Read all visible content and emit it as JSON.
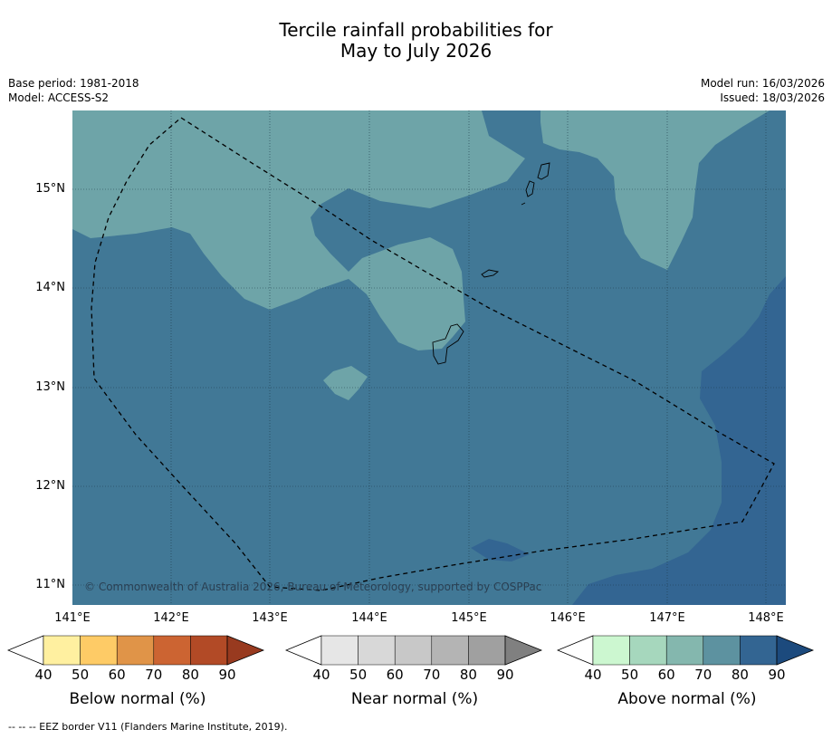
{
  "title_line1": "Tercile rainfall probabilities for",
  "title_line2": "May to July 2026",
  "base_period": "Base period: 1981-2018",
  "model": "Model: ACCESS-S2",
  "model_run": "Model run: 16/03/2026",
  "issued": "Issued: 18/03/2026",
  "copyright": "© Commonwealth of Australia 2026, Bureau of Meteorology, supported by COSPPac",
  "lat_labels": [
    "15°N",
    "14°N",
    "13°N",
    "12°N",
    "11°N"
  ],
  "lon_labels": [
    "141°E",
    "142°E",
    "143°E",
    "144°E",
    "145°E",
    "146°E",
    "147°E",
    "148°E"
  ],
  "colorbars": [
    {
      "label": "Below normal (%)",
      "ticks": [
        "40",
        "50",
        "60",
        "70",
        "80",
        "90"
      ],
      "colors": [
        "#ffffff",
        "#fff0a0",
        "#fecb66",
        "#e09448",
        "#cc6432",
        "#b24a26",
        "#983a1f"
      ]
    },
    {
      "label": "Near normal (%)",
      "ticks": [
        "40",
        "50",
        "60",
        "70",
        "80",
        "90"
      ],
      "colors": [
        "#ffffff",
        "#e6e6e6",
        "#d8d8d8",
        "#c8c8c8",
        "#b4b4b4",
        "#a0a0a0",
        "#808080"
      ]
    },
    {
      "label": "Above normal (%)",
      "ticks": [
        "40",
        "50",
        "60",
        "70",
        "80",
        "90"
      ],
      "colors": [
        "#ffffff",
        "#ccf7d0",
        "#a6d7bd",
        "#84b7ae",
        "#5d92a0",
        "#336592",
        "#1c4a7d"
      ]
    }
  ],
  "map_colors": {
    "light": "#6ea4a8",
    "mid": "#417896",
    "dark": "#336592"
  },
  "footnote": "--  --  -- EEZ border V11 (Flanders Marine Institute, 2019)."
}
